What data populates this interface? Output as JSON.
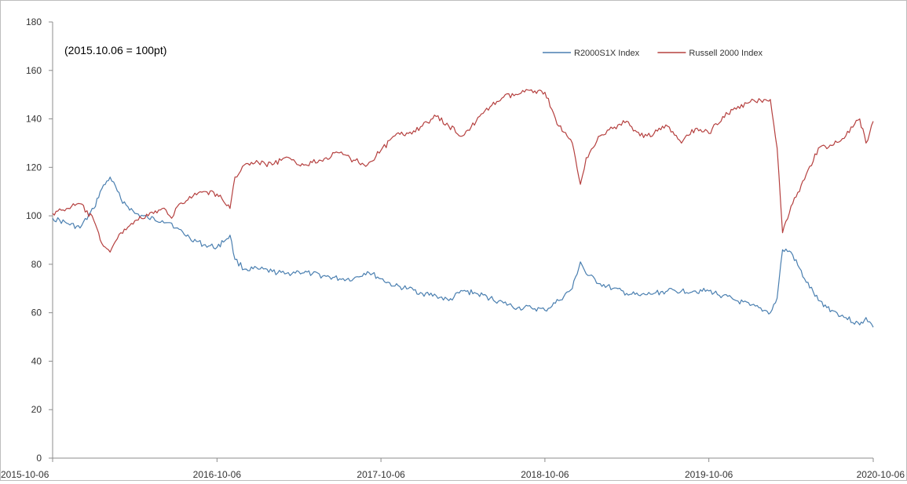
{
  "chart_data": {
    "type": "line",
    "annotation": "(2015.10.06  = 100pt)",
    "x_ticks": [
      "2015-10-06",
      "2016-10-06",
      "2017-10-06",
      "2018-10-06",
      "2019-10-06",
      "2020-10-06"
    ],
    "ylim": [
      0,
      180
    ],
    "y_ticks": [
      0,
      20,
      40,
      60,
      80,
      100,
      120,
      140,
      160,
      180
    ],
    "gridlines": false,
    "legend_position": "top-right",
    "series": [
      {
        "name": "R2000S1X Index",
        "color": "#4a7fb0",
        "points": [
          [
            "2015-10-06",
            99
          ],
          [
            "2015-11-06",
            97
          ],
          [
            "2015-12-06",
            95
          ],
          [
            "2016-01-06",
            103
          ],
          [
            "2016-01-20",
            110
          ],
          [
            "2016-02-11",
            116
          ],
          [
            "2016-03-06",
            107
          ],
          [
            "2016-04-06",
            101
          ],
          [
            "2016-05-06",
            99
          ],
          [
            "2016-06-06",
            98
          ],
          [
            "2016-06-27",
            97
          ],
          [
            "2016-07-06",
            95
          ],
          [
            "2016-08-06",
            91
          ],
          [
            "2016-09-06",
            88
          ],
          [
            "2016-10-06",
            87
          ],
          [
            "2016-11-04",
            92
          ],
          [
            "2016-11-15",
            82
          ],
          [
            "2016-12-06",
            78
          ],
          [
            "2017-01-06",
            78
          ],
          [
            "2017-02-06",
            77
          ],
          [
            "2017-03-06",
            76
          ],
          [
            "2017-04-06",
            77
          ],
          [
            "2017-05-06",
            76
          ],
          [
            "2017-06-06",
            75
          ],
          [
            "2017-07-06",
            74
          ],
          [
            "2017-08-06",
            74
          ],
          [
            "2017-09-06",
            77
          ],
          [
            "2017-10-06",
            74
          ],
          [
            "2017-11-06",
            71
          ],
          [
            "2017-12-06",
            70
          ],
          [
            "2018-01-06",
            68
          ],
          [
            "2018-02-06",
            67
          ],
          [
            "2018-03-06",
            65
          ],
          [
            "2018-04-06",
            69
          ],
          [
            "2018-05-06",
            68
          ],
          [
            "2018-06-06",
            66
          ],
          [
            "2018-07-06",
            64
          ],
          [
            "2018-08-06",
            62
          ],
          [
            "2018-09-06",
            62
          ],
          [
            "2018-10-06",
            61
          ],
          [
            "2018-11-06",
            65
          ],
          [
            "2018-12-06",
            70
          ],
          [
            "2018-12-24",
            81
          ],
          [
            "2019-01-06",
            76
          ],
          [
            "2019-02-06",
            72
          ],
          [
            "2019-03-06",
            70
          ],
          [
            "2019-04-06",
            68
          ],
          [
            "2019-05-06",
            67
          ],
          [
            "2019-06-06",
            68
          ],
          [
            "2019-07-06",
            69
          ],
          [
            "2019-08-06",
            69
          ],
          [
            "2019-09-06",
            69
          ],
          [
            "2019-10-06",
            69
          ],
          [
            "2019-11-06",
            67
          ],
          [
            "2019-12-06",
            65
          ],
          [
            "2020-01-06",
            63
          ],
          [
            "2020-02-06",
            61
          ],
          [
            "2020-02-20",
            60
          ],
          [
            "2020-03-06",
            66
          ],
          [
            "2020-03-18",
            86
          ],
          [
            "2020-04-06",
            85
          ],
          [
            "2020-05-06",
            74
          ],
          [
            "2020-06-06",
            65
          ],
          [
            "2020-07-06",
            61
          ],
          [
            "2020-08-06",
            58
          ],
          [
            "2020-09-06",
            55
          ],
          [
            "2020-09-20",
            58
          ],
          [
            "2020-10-06",
            54
          ]
        ]
      },
      {
        "name": "Russell 2000 Index",
        "color": "#b5403f",
        "points": [
          [
            "2015-10-06",
            101
          ],
          [
            "2015-11-06",
            103
          ],
          [
            "2015-12-06",
            105
          ],
          [
            "2016-01-06",
            98
          ],
          [
            "2016-01-20",
            90
          ],
          [
            "2016-02-11",
            85
          ],
          [
            "2016-03-06",
            93
          ],
          [
            "2016-04-06",
            98
          ],
          [
            "2016-05-06",
            100
          ],
          [
            "2016-06-06",
            103
          ],
          [
            "2016-06-27",
            99
          ],
          [
            "2016-07-06",
            103
          ],
          [
            "2016-08-06",
            108
          ],
          [
            "2016-09-06",
            110
          ],
          [
            "2016-10-06",
            109
          ],
          [
            "2016-11-04",
            103
          ],
          [
            "2016-11-15",
            116
          ],
          [
            "2016-12-06",
            121
          ],
          [
            "2017-01-06",
            122
          ],
          [
            "2017-02-06",
            121
          ],
          [
            "2017-03-06",
            124
          ],
          [
            "2017-04-06",
            121
          ],
          [
            "2017-05-06",
            122
          ],
          [
            "2017-06-06",
            124
          ],
          [
            "2017-07-06",
            126
          ],
          [
            "2017-08-06",
            123
          ],
          [
            "2017-09-06",
            121
          ],
          [
            "2017-10-06",
            127
          ],
          [
            "2017-11-06",
            133
          ],
          [
            "2017-12-06",
            134
          ],
          [
            "2018-01-06",
            137
          ],
          [
            "2018-02-06",
            141
          ],
          [
            "2018-03-06",
            137
          ],
          [
            "2018-04-06",
            133
          ],
          [
            "2018-05-06",
            139
          ],
          [
            "2018-06-06",
            145
          ],
          [
            "2018-07-06",
            149
          ],
          [
            "2018-08-06",
            150
          ],
          [
            "2018-09-06",
            152
          ],
          [
            "2018-10-06",
            151
          ],
          [
            "2018-11-06",
            137
          ],
          [
            "2018-12-06",
            130
          ],
          [
            "2018-12-24",
            113
          ],
          [
            "2019-01-06",
            124
          ],
          [
            "2019-02-06",
            133
          ],
          [
            "2019-03-06",
            136
          ],
          [
            "2019-04-06",
            139
          ],
          [
            "2019-05-06",
            133
          ],
          [
            "2019-06-06",
            134
          ],
          [
            "2019-07-06",
            137
          ],
          [
            "2019-08-06",
            130
          ],
          [
            "2019-09-06",
            136
          ],
          [
            "2019-10-06",
            134
          ],
          [
            "2019-11-06",
            141
          ],
          [
            "2019-12-06",
            144
          ],
          [
            "2020-01-06",
            147
          ],
          [
            "2020-02-06",
            148
          ],
          [
            "2020-02-20",
            148
          ],
          [
            "2020-03-06",
            128
          ],
          [
            "2020-03-18",
            93
          ],
          [
            "2020-04-06",
            104
          ],
          [
            "2020-05-06",
            115
          ],
          [
            "2020-06-06",
            128
          ],
          [
            "2020-07-06",
            129
          ],
          [
            "2020-08-06",
            133
          ],
          [
            "2020-09-06",
            140
          ],
          [
            "2020-09-20",
            130
          ],
          [
            "2020-10-06",
            139
          ]
        ]
      }
    ]
  }
}
